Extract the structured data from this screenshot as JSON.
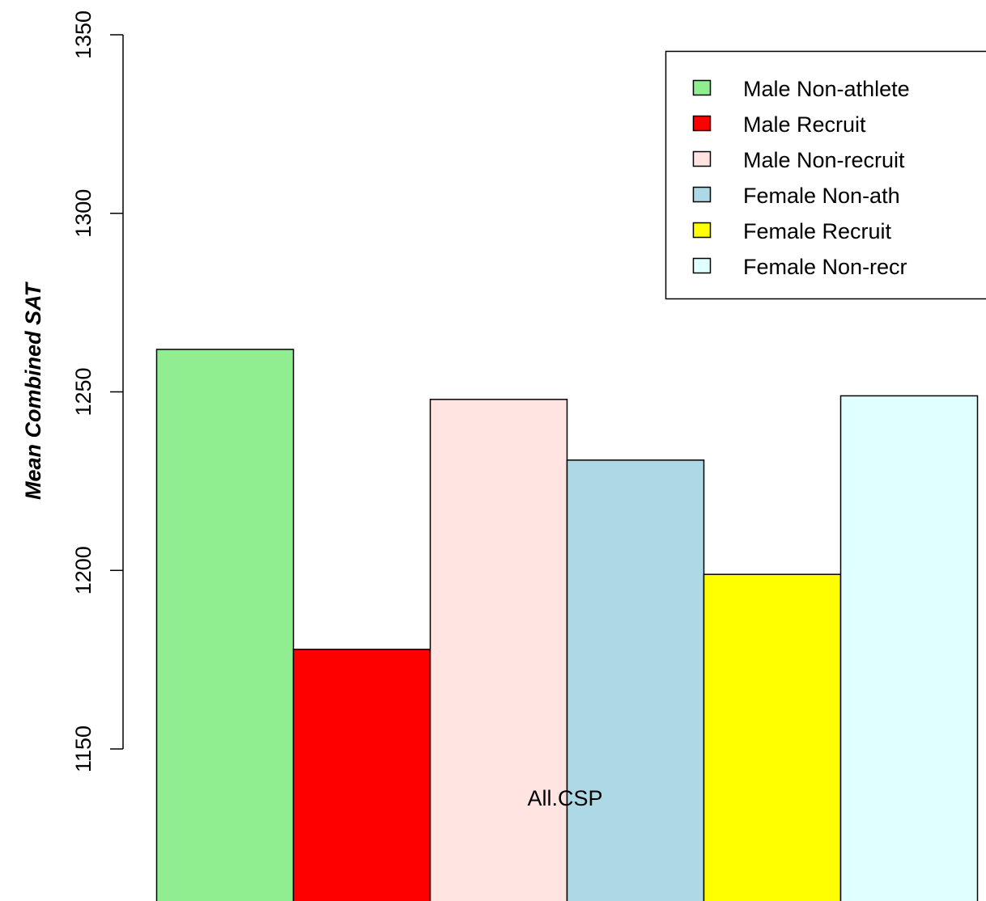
{
  "chart_data": {
    "type": "bar",
    "grouped": true,
    "categories": [
      "All.CSP"
    ],
    "ylabel": "Mean Combined SAT",
    "xlabel": "",
    "title": "",
    "ylim": [
      1100,
      1350
    ],
    "yticks": [
      1150,
      1200,
      1250,
      1300,
      1350
    ],
    "grid": false,
    "legend_position": "top-right",
    "series": [
      {
        "name": "Male Non-athlete",
        "values": [
          1262
        ],
        "color": "#90EE90"
      },
      {
        "name": "Male Recruit",
        "values": [
          1178
        ],
        "color": "#FF0000"
      },
      {
        "name": "Male Non-recruit",
        "values": [
          1248
        ],
        "color": "#FFE4E1"
      },
      {
        "name": "Female Non-ath",
        "values": [
          1231
        ],
        "color": "#ADD8E6"
      },
      {
        "name": "Female Recruit",
        "values": [
          1199
        ],
        "color": "#FFFF00"
      },
      {
        "name": "Female Non-recr",
        "values": [
          1249
        ],
        "color": "#E0FFFF"
      }
    ]
  }
}
